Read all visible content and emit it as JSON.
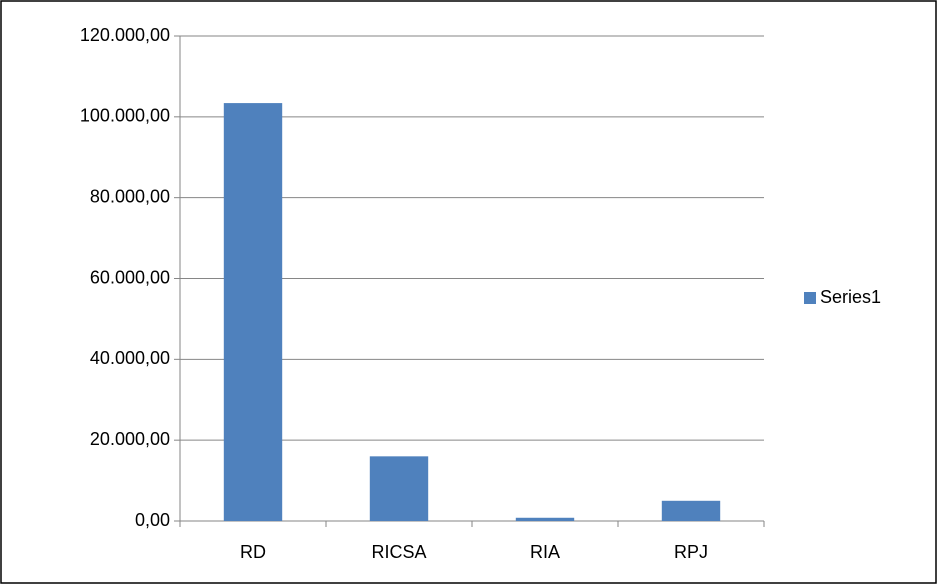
{
  "chart_data": {
    "type": "bar",
    "categories": [
      "RD",
      "RICSA",
      "RIA",
      "RPJ"
    ],
    "series": [
      {
        "name": "Series1",
        "color": "#4f81bd",
        "values": [
          103400,
          16000,
          800,
          5000
        ]
      }
    ],
    "ylim": [
      0,
      120000
    ],
    "yticks": [
      {
        "value": 0,
        "label": "0,00"
      },
      {
        "value": 20000,
        "label": "20.000,00"
      },
      {
        "value": 40000,
        "label": "40.000,00"
      },
      {
        "value": 60000,
        "label": "60.000,00"
      },
      {
        "value": 80000,
        "label": "80.000,00"
      },
      {
        "value": 100000,
        "label": "100.000,00"
      },
      {
        "value": 120000,
        "label": "120.000,00"
      }
    ],
    "grid": true,
    "legend": "right"
  }
}
